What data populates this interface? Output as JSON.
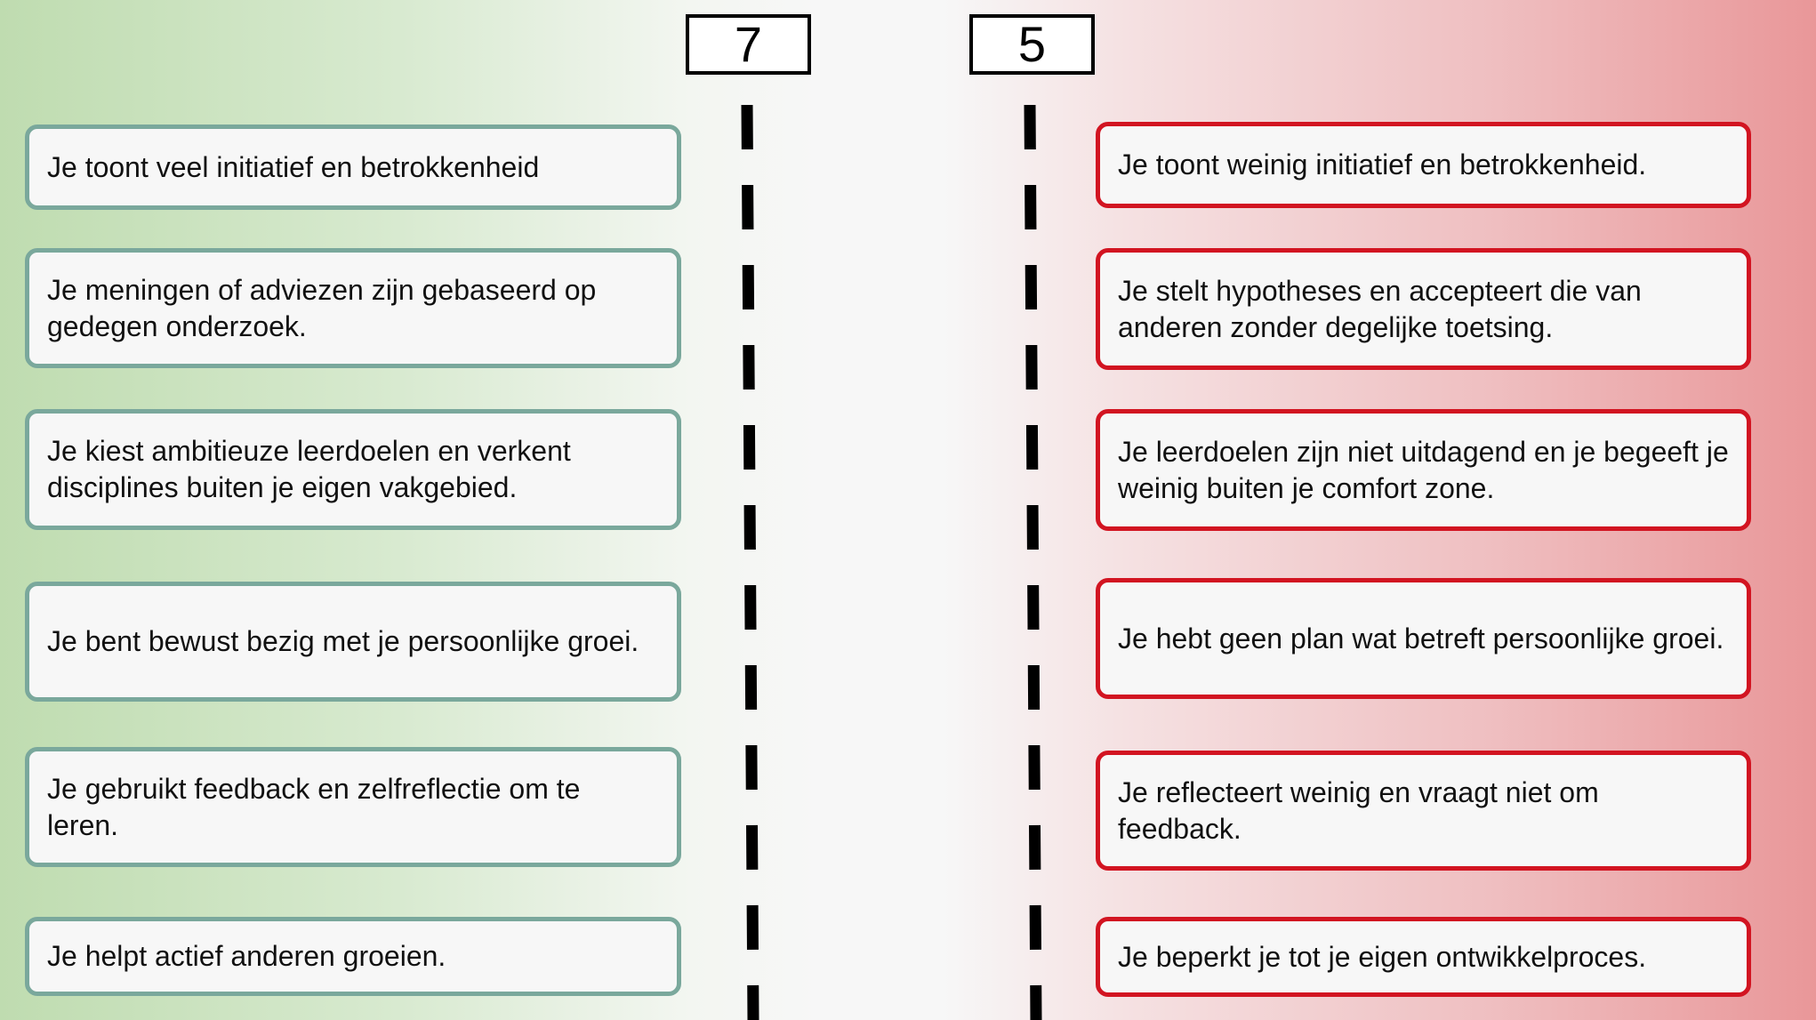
{
  "scores": {
    "good": "7",
    "poor": "5"
  },
  "good_criteria": [
    "Je toont veel initiatief en betrokkenheid",
    "Je meningen of adviezen zijn gebaseerd op gedegen onderzoek.",
    "Je kiest ambitieuze leerdoelen en verkent disciplines buiten je eigen vakgebied.",
    "Je bent bewust bezig met je persoonlijke groei.",
    "Je gebruikt feedback en zelfreflectie om te leren.",
    "Je helpt actief anderen groeien."
  ],
  "poor_criteria": [
    "Je toont weinig initiatief en betrokkenheid.",
    "Je stelt hypotheses en accepteert die van anderen zonder degelijke toetsing.",
    "Je leerdoelen zijn niet uitdagend en je begeeft je weinig buiten je comfort zone.",
    "Je hebt geen plan wat betreft persoonlijke groei.",
    "Je reflecteert weinig en vraagt niet om feedback.",
    "Je beperkt je tot je eigen ontwikkelproces."
  ],
  "colors": {
    "good_border": "#7aa89c",
    "poor_border": "#d21421",
    "good_background": "#bfdcb0",
    "poor_background": "#e99799"
  }
}
